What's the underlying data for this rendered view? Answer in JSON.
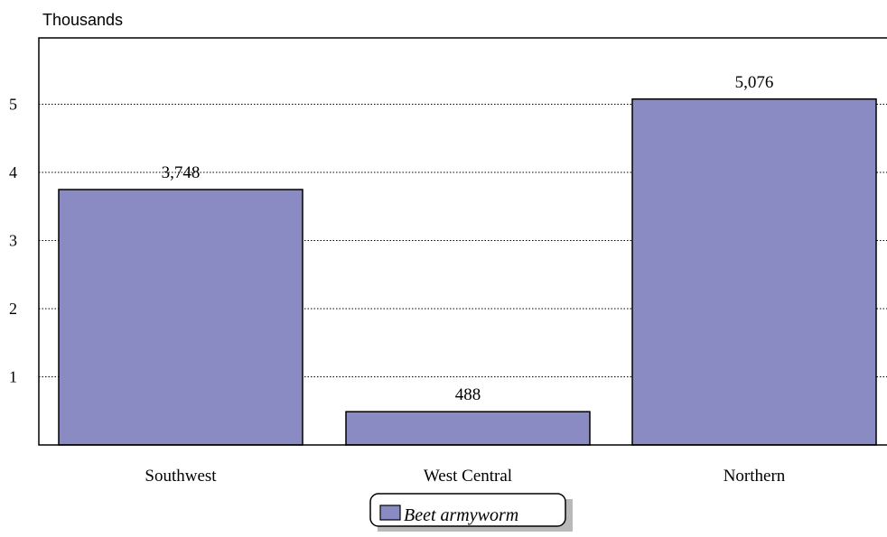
{
  "chart_data": {
    "type": "bar",
    "unit_label": "Thousands",
    "categories": [
      "Southwest",
      "West Central",
      "Northern"
    ],
    "series": [
      {
        "name": "Beet armyworm",
        "values": [
          3748,
          488,
          5076
        ],
        "value_labels": [
          "3,748",
          "488",
          "5,076"
        ]
      }
    ],
    "yticks": [
      1,
      2,
      3,
      4,
      5
    ],
    "ylim": [
      0,
      6
    ],
    "y_scale_divisor": 1000,
    "grid": true,
    "legend_position": "bottom",
    "bar_color": "#8B8BC4",
    "title": "",
    "xlabel": "",
    "ylabel": ""
  }
}
